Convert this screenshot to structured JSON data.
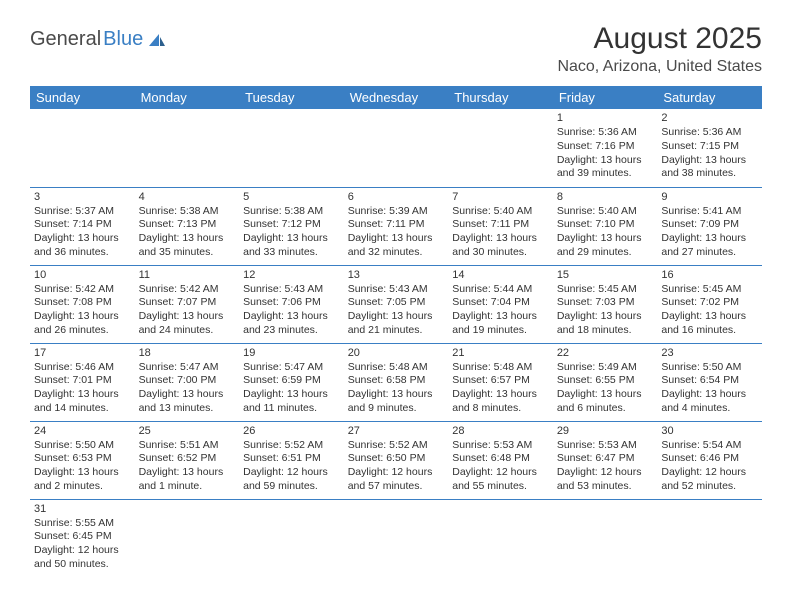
{
  "logo": {
    "part1": "General",
    "part2": "Blue"
  },
  "title": "August 2025",
  "location": "Naco, Arizona, United States",
  "colors": {
    "header_bg": "#3a7fc4",
    "header_text": "#ffffff",
    "border": "#3a7fc4",
    "text": "#333333",
    "logo_gray": "#4a4a4a",
    "logo_blue": "#3a7fc4"
  },
  "daysOfWeek": [
    "Sunday",
    "Monday",
    "Tuesday",
    "Wednesday",
    "Thursday",
    "Friday",
    "Saturday"
  ],
  "weeks": [
    [
      null,
      null,
      null,
      null,
      null,
      {
        "n": "1",
        "sunrise": "Sunrise: 5:36 AM",
        "sunset": "Sunset: 7:16 PM",
        "daylight": "Daylight: 13 hours and 39 minutes."
      },
      {
        "n": "2",
        "sunrise": "Sunrise: 5:36 AM",
        "sunset": "Sunset: 7:15 PM",
        "daylight": "Daylight: 13 hours and 38 minutes."
      }
    ],
    [
      {
        "n": "3",
        "sunrise": "Sunrise: 5:37 AM",
        "sunset": "Sunset: 7:14 PM",
        "daylight": "Daylight: 13 hours and 36 minutes."
      },
      {
        "n": "4",
        "sunrise": "Sunrise: 5:38 AM",
        "sunset": "Sunset: 7:13 PM",
        "daylight": "Daylight: 13 hours and 35 minutes."
      },
      {
        "n": "5",
        "sunrise": "Sunrise: 5:38 AM",
        "sunset": "Sunset: 7:12 PM",
        "daylight": "Daylight: 13 hours and 33 minutes."
      },
      {
        "n": "6",
        "sunrise": "Sunrise: 5:39 AM",
        "sunset": "Sunset: 7:11 PM",
        "daylight": "Daylight: 13 hours and 32 minutes."
      },
      {
        "n": "7",
        "sunrise": "Sunrise: 5:40 AM",
        "sunset": "Sunset: 7:11 PM",
        "daylight": "Daylight: 13 hours and 30 minutes."
      },
      {
        "n": "8",
        "sunrise": "Sunrise: 5:40 AM",
        "sunset": "Sunset: 7:10 PM",
        "daylight": "Daylight: 13 hours and 29 minutes."
      },
      {
        "n": "9",
        "sunrise": "Sunrise: 5:41 AM",
        "sunset": "Sunset: 7:09 PM",
        "daylight": "Daylight: 13 hours and 27 minutes."
      }
    ],
    [
      {
        "n": "10",
        "sunrise": "Sunrise: 5:42 AM",
        "sunset": "Sunset: 7:08 PM",
        "daylight": "Daylight: 13 hours and 26 minutes."
      },
      {
        "n": "11",
        "sunrise": "Sunrise: 5:42 AM",
        "sunset": "Sunset: 7:07 PM",
        "daylight": "Daylight: 13 hours and 24 minutes."
      },
      {
        "n": "12",
        "sunrise": "Sunrise: 5:43 AM",
        "sunset": "Sunset: 7:06 PM",
        "daylight": "Daylight: 13 hours and 23 minutes."
      },
      {
        "n": "13",
        "sunrise": "Sunrise: 5:43 AM",
        "sunset": "Sunset: 7:05 PM",
        "daylight": "Daylight: 13 hours and 21 minutes."
      },
      {
        "n": "14",
        "sunrise": "Sunrise: 5:44 AM",
        "sunset": "Sunset: 7:04 PM",
        "daylight": "Daylight: 13 hours and 19 minutes."
      },
      {
        "n": "15",
        "sunrise": "Sunrise: 5:45 AM",
        "sunset": "Sunset: 7:03 PM",
        "daylight": "Daylight: 13 hours and 18 minutes."
      },
      {
        "n": "16",
        "sunrise": "Sunrise: 5:45 AM",
        "sunset": "Sunset: 7:02 PM",
        "daylight": "Daylight: 13 hours and 16 minutes."
      }
    ],
    [
      {
        "n": "17",
        "sunrise": "Sunrise: 5:46 AM",
        "sunset": "Sunset: 7:01 PM",
        "daylight": "Daylight: 13 hours and 14 minutes."
      },
      {
        "n": "18",
        "sunrise": "Sunrise: 5:47 AM",
        "sunset": "Sunset: 7:00 PM",
        "daylight": "Daylight: 13 hours and 13 minutes."
      },
      {
        "n": "19",
        "sunrise": "Sunrise: 5:47 AM",
        "sunset": "Sunset: 6:59 PM",
        "daylight": "Daylight: 13 hours and 11 minutes."
      },
      {
        "n": "20",
        "sunrise": "Sunrise: 5:48 AM",
        "sunset": "Sunset: 6:58 PM",
        "daylight": "Daylight: 13 hours and 9 minutes."
      },
      {
        "n": "21",
        "sunrise": "Sunrise: 5:48 AM",
        "sunset": "Sunset: 6:57 PM",
        "daylight": "Daylight: 13 hours and 8 minutes."
      },
      {
        "n": "22",
        "sunrise": "Sunrise: 5:49 AM",
        "sunset": "Sunset: 6:55 PM",
        "daylight": "Daylight: 13 hours and 6 minutes."
      },
      {
        "n": "23",
        "sunrise": "Sunrise: 5:50 AM",
        "sunset": "Sunset: 6:54 PM",
        "daylight": "Daylight: 13 hours and 4 minutes."
      }
    ],
    [
      {
        "n": "24",
        "sunrise": "Sunrise: 5:50 AM",
        "sunset": "Sunset: 6:53 PM",
        "daylight": "Daylight: 13 hours and 2 minutes."
      },
      {
        "n": "25",
        "sunrise": "Sunrise: 5:51 AM",
        "sunset": "Sunset: 6:52 PM",
        "daylight": "Daylight: 13 hours and 1 minute."
      },
      {
        "n": "26",
        "sunrise": "Sunrise: 5:52 AM",
        "sunset": "Sunset: 6:51 PM",
        "daylight": "Daylight: 12 hours and 59 minutes."
      },
      {
        "n": "27",
        "sunrise": "Sunrise: 5:52 AM",
        "sunset": "Sunset: 6:50 PM",
        "daylight": "Daylight: 12 hours and 57 minutes."
      },
      {
        "n": "28",
        "sunrise": "Sunrise: 5:53 AM",
        "sunset": "Sunset: 6:48 PM",
        "daylight": "Daylight: 12 hours and 55 minutes."
      },
      {
        "n": "29",
        "sunrise": "Sunrise: 5:53 AM",
        "sunset": "Sunset: 6:47 PM",
        "daylight": "Daylight: 12 hours and 53 minutes."
      },
      {
        "n": "30",
        "sunrise": "Sunrise: 5:54 AM",
        "sunset": "Sunset: 6:46 PM",
        "daylight": "Daylight: 12 hours and 52 minutes."
      }
    ],
    [
      {
        "n": "31",
        "sunrise": "Sunrise: 5:55 AM",
        "sunset": "Sunset: 6:45 PM",
        "daylight": "Daylight: 12 hours and 50 minutes."
      },
      null,
      null,
      null,
      null,
      null,
      null
    ]
  ]
}
